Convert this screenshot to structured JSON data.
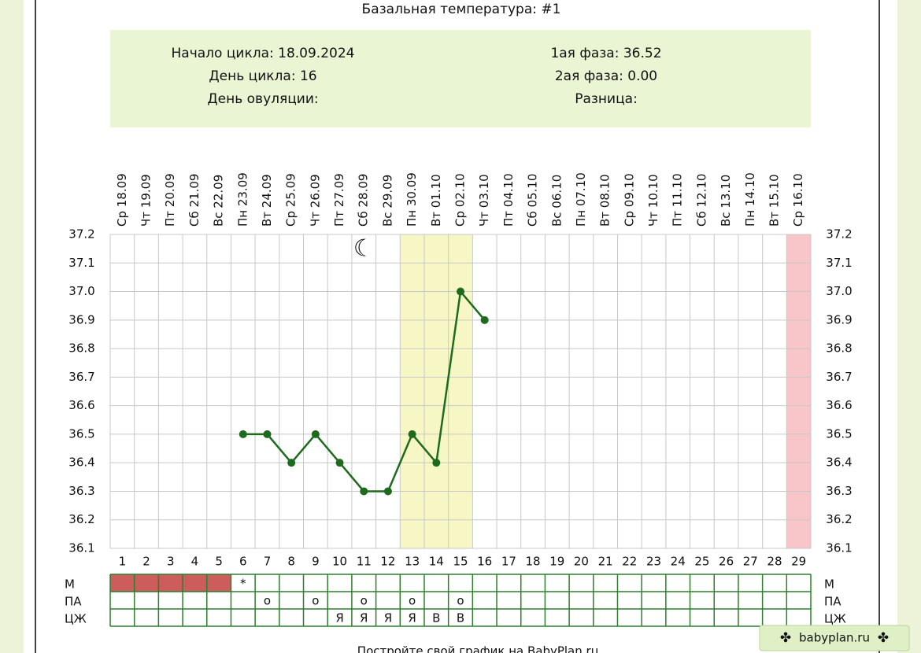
{
  "chart_data": {
    "type": "line",
    "title": "Базальная температура: #1",
    "info_left": [
      "Начало цикла: 18.09.2024",
      "День цикла: 16",
      "День овуляции:"
    ],
    "info_right": [
      "1ая фаза: 36.52",
      "2ая фаза: 0.00",
      "Разница:"
    ],
    "date_labels": [
      "Ср 18.09",
      "Чт 19.09",
      "Пт 20.09",
      "Сб 21.09",
      "Вс 22.09",
      "Пн 23.09",
      "Вт 24.09",
      "Ср 25.09",
      "Чт 26.09",
      "Пт 27.09",
      "Сб 28.09",
      "Вс 29.09",
      "Пн 30.09",
      "Вт 01.10",
      "Ср 02.10",
      "Чт 03.10",
      "Пт 04.10",
      "Сб 05.10",
      "Вс 06.10",
      "Пн 07.10",
      "Вт 08.10",
      "Ср 09.10",
      "Чт 10.10",
      "Пт 11.10",
      "Сб 12.10",
      "Вс 13.10",
      "Пн 14.10",
      "Вт 15.10",
      "Ср 16.10"
    ],
    "categories": [
      1,
      2,
      3,
      4,
      5,
      6,
      7,
      8,
      9,
      10,
      11,
      12,
      13,
      14,
      15,
      16,
      17,
      18,
      19,
      20,
      21,
      22,
      23,
      24,
      25,
      26,
      27,
      28,
      29
    ],
    "series": [
      {
        "name": "Температура",
        "color": "#1e6b1e",
        "values": [
          null,
          null,
          null,
          null,
          null,
          36.5,
          36.5,
          36.4,
          36.5,
          36.4,
          36.3,
          36.3,
          36.5,
          36.4,
          37.0,
          36.9,
          null,
          null,
          null,
          null,
          null,
          null,
          null,
          null,
          null,
          null,
          null,
          null,
          null
        ]
      }
    ],
    "ylim": [
      36.1,
      37.2
    ],
    "yticks": [
      36.1,
      36.2,
      36.3,
      36.4,
      36.5,
      36.6,
      36.7,
      36.8,
      36.9,
      {
        "value": 37,
        "label": "37.0"
      },
      37.1,
      37.2
    ],
    "highlight_days": [
      13,
      14,
      15
    ],
    "highlight_color": "#f7f7c6",
    "marked_days": [
      29
    ],
    "marked_color": "#f8c5c8",
    "moon_day": 11,
    "rows": [
      {
        "label": "М",
        "filled_days": [
          1,
          2,
          3,
          4,
          5
        ],
        "fill_color": "#cd5c5c",
        "entries": [
          {
            "day": 6,
            "text": "*"
          }
        ]
      },
      {
        "label": "ПА",
        "filled_days": [],
        "fill_color": "#cd5c5c",
        "entries": [
          {
            "day": 7,
            "text": "о"
          },
          {
            "day": 9,
            "text": "о"
          },
          {
            "day": 11,
            "text": "о"
          },
          {
            "day": 13,
            "text": "о"
          },
          {
            "day": 15,
            "text": "о"
          }
        ]
      },
      {
        "label": "ЦЖ",
        "filled_days": [],
        "fill_color": "#cd5c5c",
        "entries": [
          {
            "day": 10,
            "text": "Я"
          },
          {
            "day": 11,
            "text": "Я"
          },
          {
            "day": 12,
            "text": "Я"
          },
          {
            "day": 13,
            "text": "Я"
          },
          {
            "day": 14,
            "text": "В"
          },
          {
            "day": 15,
            "text": "В"
          }
        ]
      }
    ]
  },
  "footer": "Постройте свой график на BabyPlan.ru",
  "badge": "babyplan.ru"
}
